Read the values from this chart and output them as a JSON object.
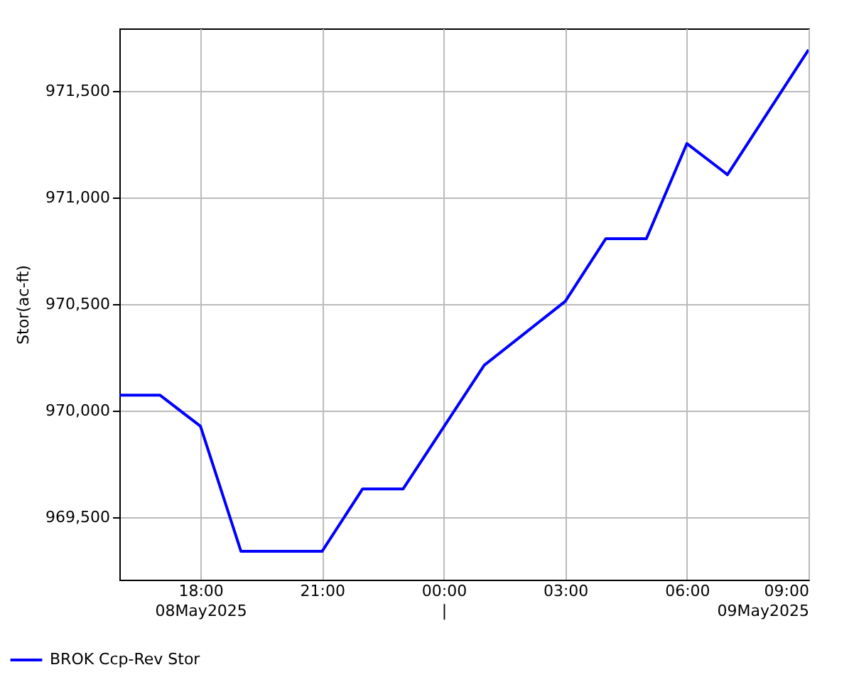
{
  "chart_data": {
    "type": "line",
    "ylabel": "Stor(ac-ft)",
    "x": [
      "2025-05-08T16:00",
      "2025-05-08T17:00",
      "2025-05-08T18:00",
      "2025-05-08T19:00",
      "2025-05-08T20:00",
      "2025-05-08T21:00",
      "2025-05-08T22:00",
      "2025-05-08T23:00",
      "2025-05-09T00:00",
      "2025-05-09T01:00",
      "2025-05-09T02:00",
      "2025-05-09T03:00",
      "2025-05-09T04:00",
      "2025-05-09T05:00",
      "2025-05-09T06:00",
      "2025-05-09T07:00",
      "2025-05-09T08:00",
      "2025-05-09T09:00"
    ],
    "series": [
      {
        "name": "BROK Ccp-Rev Stor",
        "color": "#0000ff",
        "values": [
          970073,
          970073,
          969927,
          969340,
          969340,
          969340,
          969633,
          969633,
          969923,
          970213,
          970363,
          970513,
          970807,
          970807,
          971253,
          971107,
          971400,
          971693
        ]
      }
    ],
    "xlim": [
      "2025-05-08T16:00",
      "2025-05-09T09:00"
    ],
    "xticks": [
      {
        "value": "2025-05-08T18:00",
        "label": "18:00\n08May2025"
      },
      {
        "value": "2025-05-08T21:00",
        "label": "21:00"
      },
      {
        "value": "2025-05-09T00:00",
        "label": "00:00\n|"
      },
      {
        "value": "2025-05-09T03:00",
        "label": "03:00"
      },
      {
        "value": "2025-05-09T06:00",
        "label": "06:00"
      },
      {
        "value": "2025-05-09T09:00",
        "label": "09:00\n09May2025"
      }
    ],
    "ylim": [
      969207,
      971793
    ],
    "yticks": [
      {
        "value": 969500,
        "label": "969,500"
      },
      {
        "value": 970000,
        "label": "970,000"
      },
      {
        "value": 970500,
        "label": "970,500"
      },
      {
        "value": 971000,
        "label": "971,000"
      },
      {
        "value": 971500,
        "label": "971,500"
      }
    ],
    "grid": true,
    "legend": "bottom",
    "line_style": "solid",
    "marker": "none"
  }
}
